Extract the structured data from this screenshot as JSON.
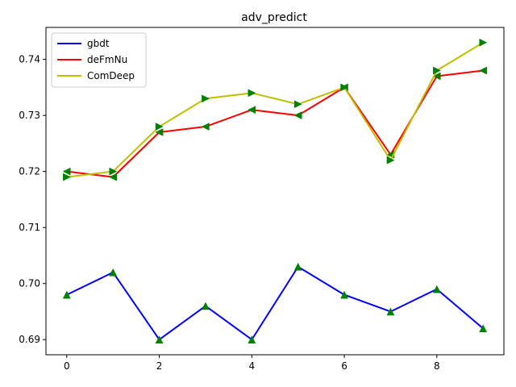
{
  "chart_data": {
    "type": "line",
    "title": "adv_predict",
    "xlabel": "",
    "ylabel": "",
    "x": [
      0,
      1,
      2,
      3,
      4,
      5,
      6,
      7,
      8,
      9
    ],
    "xlim": [
      -0.45,
      9.45
    ],
    "ylim": [
      0.6873,
      0.7457
    ],
    "xticks": [
      0,
      2,
      4,
      6,
      8
    ],
    "yticks": [
      0.69,
      0.7,
      0.71,
      0.72,
      0.73,
      0.74
    ],
    "xtick_labels": [
      "0",
      "2",
      "4",
      "6",
      "8"
    ],
    "ytick_labels": [
      "0.69",
      "0.70",
      "0.71",
      "0.72",
      "0.73",
      "0.74"
    ],
    "grid": false,
    "legend_position": "upper-left",
    "series": [
      {
        "name": "gbdt",
        "color": "#0000ff",
        "marker": "triangle-up",
        "marker_color": "#008000",
        "values": [
          0.698,
          0.702,
          0.69,
          0.696,
          0.69,
          0.703,
          0.698,
          0.695,
          0.699,
          0.692
        ]
      },
      {
        "name": "deFmNu",
        "color": "#ff0000",
        "marker": "triangle-left",
        "marker_color": "#008000",
        "values": [
          0.72,
          0.719,
          0.727,
          0.728,
          0.731,
          0.73,
          0.735,
          0.723,
          0.737,
          0.738
        ]
      },
      {
        "name": "ComDeep",
        "color": "#bfbf00",
        "marker": "triangle-right",
        "marker_color": "#008000",
        "values": [
          0.719,
          0.72,
          0.728,
          0.733,
          0.734,
          0.732,
          0.735,
          0.722,
          0.738,
          0.743
        ]
      }
    ]
  }
}
